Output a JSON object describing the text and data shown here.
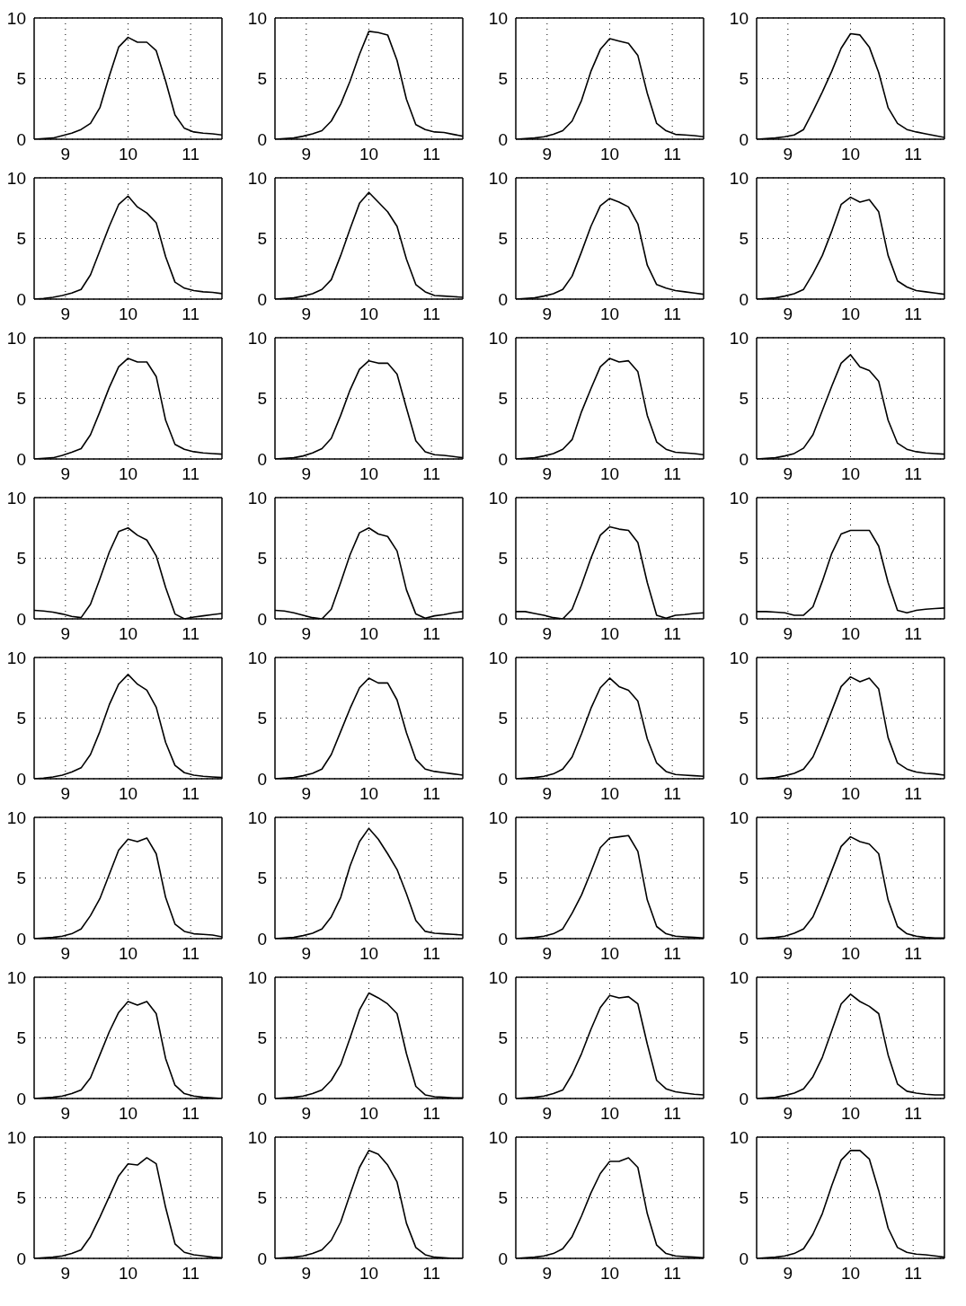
{
  "chart_data": [
    {
      "type": "line",
      "color": "#000000",
      "x": [
        8.5,
        8.65,
        8.8,
        8.95,
        9.1,
        9.25,
        9.4,
        9.55,
        9.7,
        9.85,
        10.0,
        10.15,
        10.3,
        10.45,
        10.6,
        10.75,
        10.9,
        11.05,
        11.2,
        11.35,
        11.5
      ],
      "values": [
        0,
        0.05,
        0.1,
        0.3,
        0.5,
        0.8,
        1.3,
        2.6,
        5.2,
        7.6,
        8.4,
        8.0,
        8.0,
        7.3,
        4.8,
        2.0,
        0.9,
        0.6,
        0.5,
        0.45,
        0.35
      ],
      "xlim": [
        8.5,
        11.5
      ],
      "xticks": [
        9,
        10,
        11
      ],
      "ylim": [
        0,
        10
      ],
      "yticks": [
        0,
        5,
        10
      ],
      "grid": true
    },
    {
      "type": "line",
      "color": "#000000",
      "x": [
        8.5,
        8.65,
        8.8,
        8.95,
        9.1,
        9.25,
        9.4,
        9.55,
        9.7,
        9.85,
        10.0,
        10.15,
        10.3,
        10.45,
        10.6,
        10.75,
        10.9,
        11.05,
        11.2,
        11.35,
        11.5
      ],
      "values": [
        0,
        0.05,
        0.1,
        0.25,
        0.45,
        0.7,
        1.5,
        2.9,
        4.8,
        7.0,
        8.9,
        8.8,
        8.6,
        6.5,
        3.3,
        1.2,
        0.8,
        0.6,
        0.55,
        0.4,
        0.25
      ],
      "xlim": [
        8.5,
        11.5
      ],
      "xticks": [
        9,
        10,
        11
      ],
      "ylim": [
        0,
        10
      ],
      "yticks": [
        0,
        5,
        10
      ],
      "grid": true
    },
    {
      "type": "line",
      "color": "#000000",
      "x": [
        8.5,
        8.65,
        8.8,
        8.95,
        9.1,
        9.25,
        9.4,
        9.55,
        9.7,
        9.85,
        10.0,
        10.15,
        10.3,
        10.45,
        10.6,
        10.75,
        10.9,
        11.05,
        11.2,
        11.35,
        11.5
      ],
      "values": [
        0,
        0.05,
        0.1,
        0.2,
        0.4,
        0.7,
        1.5,
        3.2,
        5.6,
        7.4,
        8.3,
        8.1,
        7.9,
        6.9,
        3.8,
        1.3,
        0.7,
        0.4,
        0.35,
        0.3,
        0.2
      ],
      "xlim": [
        8.5,
        11.5
      ],
      "xticks": [
        9,
        10,
        11
      ],
      "ylim": [
        0,
        10
      ],
      "yticks": [
        0,
        5,
        10
      ],
      "grid": true
    },
    {
      "type": "line",
      "color": "#000000",
      "x": [
        8.5,
        8.65,
        8.8,
        8.95,
        9.1,
        9.25,
        9.4,
        9.55,
        9.7,
        9.85,
        10.0,
        10.15,
        10.3,
        10.45,
        10.6,
        10.75,
        10.9,
        11.05,
        11.2,
        11.35,
        11.5
      ],
      "values": [
        0,
        0.05,
        0.1,
        0.2,
        0.35,
        0.8,
        2.3,
        3.9,
        5.6,
        7.5,
        8.7,
        8.6,
        7.6,
        5.5,
        2.6,
        1.3,
        0.8,
        0.6,
        0.45,
        0.3,
        0.15
      ],
      "xlim": [
        8.5,
        11.5
      ],
      "xticks": [
        9,
        10,
        11
      ],
      "ylim": [
        0,
        10
      ],
      "yticks": [
        0,
        5,
        10
      ],
      "grid": true
    },
    {
      "type": "line",
      "color": "#000000",
      "x": [
        8.5,
        8.65,
        8.8,
        8.95,
        9.1,
        9.25,
        9.4,
        9.55,
        9.7,
        9.85,
        10.0,
        10.15,
        10.3,
        10.45,
        10.6,
        10.75,
        10.9,
        11.05,
        11.2,
        11.35,
        11.5
      ],
      "values": [
        0,
        0.05,
        0.15,
        0.3,
        0.5,
        0.8,
        2.0,
        4.0,
        6.0,
        7.8,
        8.5,
        7.6,
        7.1,
        6.3,
        3.5,
        1.4,
        0.9,
        0.7,
        0.6,
        0.55,
        0.45
      ],
      "xlim": [
        8.5,
        11.5
      ],
      "xticks": [
        9,
        10,
        11
      ],
      "ylim": [
        0,
        10
      ],
      "yticks": [
        0,
        5,
        10
      ],
      "grid": true
    },
    {
      "type": "line",
      "color": "#000000",
      "x": [
        8.5,
        8.65,
        8.8,
        8.95,
        9.1,
        9.25,
        9.4,
        9.55,
        9.7,
        9.85,
        10.0,
        10.15,
        10.3,
        10.45,
        10.6,
        10.75,
        10.9,
        11.05,
        11.2,
        11.35,
        11.5
      ],
      "values": [
        0,
        0.05,
        0.1,
        0.25,
        0.45,
        0.8,
        1.6,
        3.6,
        5.8,
        7.9,
        8.8,
        8.0,
        7.2,
        6.0,
        3.3,
        1.2,
        0.6,
        0.3,
        0.25,
        0.2,
        0.15
      ],
      "xlim": [
        8.5,
        11.5
      ],
      "xticks": [
        9,
        10,
        11
      ],
      "ylim": [
        0,
        10
      ],
      "yticks": [
        0,
        5,
        10
      ],
      "grid": true
    },
    {
      "type": "line",
      "color": "#000000",
      "x": [
        8.5,
        8.65,
        8.8,
        8.95,
        9.1,
        9.25,
        9.4,
        9.55,
        9.7,
        9.85,
        10.0,
        10.15,
        10.3,
        10.45,
        10.6,
        10.75,
        10.9,
        11.05,
        11.2,
        11.35,
        11.5
      ],
      "values": [
        0,
        0.05,
        0.1,
        0.25,
        0.45,
        0.8,
        1.9,
        3.9,
        6.0,
        7.7,
        8.3,
        8.0,
        7.6,
        6.2,
        2.8,
        1.2,
        0.9,
        0.7,
        0.6,
        0.5,
        0.4
      ],
      "xlim": [
        8.5,
        11.5
      ],
      "xticks": [
        9,
        10,
        11
      ],
      "ylim": [
        0,
        10
      ],
      "yticks": [
        0,
        5,
        10
      ],
      "grid": true
    },
    {
      "type": "line",
      "color": "#000000",
      "x": [
        8.5,
        8.65,
        8.8,
        8.95,
        9.1,
        9.25,
        9.4,
        9.55,
        9.7,
        9.85,
        10.0,
        10.15,
        10.3,
        10.45,
        10.6,
        10.75,
        10.9,
        11.05,
        11.2,
        11.35,
        11.5
      ],
      "values": [
        0,
        0.05,
        0.1,
        0.25,
        0.45,
        0.8,
        2.1,
        3.6,
        5.6,
        7.8,
        8.4,
        8.0,
        8.2,
        7.2,
        3.6,
        1.5,
        1.0,
        0.7,
        0.6,
        0.5,
        0.4
      ],
      "xlim": [
        8.5,
        11.5
      ],
      "xticks": [
        9,
        10,
        11
      ],
      "ylim": [
        0,
        10
      ],
      "yticks": [
        0,
        5,
        10
      ],
      "grid": true
    },
    {
      "type": "line",
      "color": "#000000",
      "x": [
        8.5,
        8.65,
        8.8,
        8.95,
        9.1,
        9.25,
        9.4,
        9.55,
        9.7,
        9.85,
        10.0,
        10.15,
        10.3,
        10.45,
        10.6,
        10.75,
        10.9,
        11.05,
        11.2,
        11.35,
        11.5
      ],
      "values": [
        0,
        0.05,
        0.1,
        0.3,
        0.55,
        0.85,
        2.0,
        3.9,
        5.9,
        7.6,
        8.3,
        8.0,
        8.0,
        6.8,
        3.2,
        1.2,
        0.8,
        0.6,
        0.5,
        0.45,
        0.4
      ],
      "xlim": [
        8.5,
        11.5
      ],
      "xticks": [
        9,
        10,
        11
      ],
      "ylim": [
        0,
        10
      ],
      "yticks": [
        0,
        5,
        10
      ],
      "grid": true
    },
    {
      "type": "line",
      "color": "#000000",
      "x": [
        8.5,
        8.65,
        8.8,
        8.95,
        9.1,
        9.25,
        9.4,
        9.55,
        9.7,
        9.85,
        10.0,
        10.15,
        10.3,
        10.45,
        10.6,
        10.75,
        10.9,
        11.05,
        11.2,
        11.35,
        11.5
      ],
      "values": [
        0,
        0.05,
        0.1,
        0.25,
        0.5,
        0.85,
        1.7,
        3.6,
        5.7,
        7.4,
        8.1,
        7.9,
        7.9,
        7.0,
        4.2,
        1.5,
        0.6,
        0.35,
        0.3,
        0.2,
        0.1
      ],
      "xlim": [
        8.5,
        11.5
      ],
      "xticks": [
        9,
        10,
        11
      ],
      "ylim": [
        0,
        10
      ],
      "yticks": [
        0,
        5,
        10
      ],
      "grid": true
    },
    {
      "type": "line",
      "color": "#000000",
      "x": [
        8.5,
        8.65,
        8.8,
        8.95,
        9.1,
        9.25,
        9.4,
        9.55,
        9.7,
        9.85,
        10.0,
        10.15,
        10.3,
        10.45,
        10.6,
        10.75,
        10.9,
        11.05,
        11.2,
        11.35,
        11.5
      ],
      "values": [
        0,
        0.05,
        0.1,
        0.25,
        0.45,
        0.8,
        1.6,
        3.9,
        5.8,
        7.6,
        8.3,
        8.0,
        8.1,
        7.2,
        3.6,
        1.4,
        0.8,
        0.55,
        0.5,
        0.45,
        0.35
      ],
      "xlim": [
        8.5,
        11.5
      ],
      "xticks": [
        9,
        10,
        11
      ],
      "ylim": [
        0,
        10
      ],
      "yticks": [
        0,
        5,
        10
      ],
      "grid": true
    },
    {
      "type": "line",
      "color": "#000000",
      "x": [
        8.5,
        8.65,
        8.8,
        8.95,
        9.1,
        9.25,
        9.4,
        9.55,
        9.7,
        9.85,
        10.0,
        10.15,
        10.3,
        10.45,
        10.6,
        10.75,
        10.9,
        11.05,
        11.2,
        11.35,
        11.5
      ],
      "values": [
        0,
        0.05,
        0.1,
        0.25,
        0.45,
        0.9,
        2.0,
        4.0,
        6.0,
        7.9,
        8.6,
        7.6,
        7.3,
        6.4,
        3.2,
        1.3,
        0.8,
        0.6,
        0.5,
        0.45,
        0.4
      ],
      "xlim": [
        8.5,
        11.5
      ],
      "xticks": [
        9,
        10,
        11
      ],
      "ylim": [
        0,
        10
      ],
      "yticks": [
        0,
        5,
        10
      ],
      "grid": true
    },
    {
      "type": "line",
      "color": "#000000",
      "x": [
        8.5,
        8.65,
        8.8,
        8.95,
        9.1,
        9.25,
        9.4,
        9.55,
        9.7,
        9.85,
        10.0,
        10.15,
        10.3,
        10.45,
        10.6,
        10.75,
        10.9,
        11.05,
        11.2,
        11.35,
        11.5
      ],
      "values": [
        0.7,
        0.65,
        0.55,
        0.4,
        0.2,
        0.1,
        1.2,
        3.3,
        5.5,
        7.2,
        7.5,
        6.9,
        6.5,
        5.2,
        2.6,
        0.4,
        0.0,
        0.15,
        0.25,
        0.35,
        0.45
      ],
      "xlim": [
        8.5,
        11.5
      ],
      "xticks": [
        9,
        10,
        11
      ],
      "ylim": [
        0,
        10
      ],
      "yticks": [
        0,
        5,
        10
      ],
      "grid": true
    },
    {
      "type": "line",
      "color": "#000000",
      "x": [
        8.5,
        8.65,
        8.8,
        8.95,
        9.1,
        9.25,
        9.4,
        9.55,
        9.7,
        9.85,
        10.0,
        10.15,
        10.3,
        10.45,
        10.6,
        10.75,
        10.9,
        11.05,
        11.2,
        11.35,
        11.5
      ],
      "values": [
        0.7,
        0.65,
        0.5,
        0.3,
        0.1,
        0.0,
        0.8,
        3.0,
        5.3,
        7.1,
        7.5,
        7.0,
        6.8,
        5.6,
        2.4,
        0.4,
        0.05,
        0.25,
        0.35,
        0.5,
        0.6
      ],
      "xlim": [
        8.5,
        11.5
      ],
      "xticks": [
        9,
        10,
        11
      ],
      "ylim": [
        0,
        10
      ],
      "yticks": [
        0,
        5,
        10
      ],
      "grid": true
    },
    {
      "type": "line",
      "color": "#000000",
      "x": [
        8.5,
        8.65,
        8.8,
        8.95,
        9.1,
        9.25,
        9.4,
        9.55,
        9.7,
        9.85,
        10.0,
        10.15,
        10.3,
        10.45,
        10.6,
        10.75,
        10.9,
        11.05,
        11.2,
        11.35,
        11.5
      ],
      "values": [
        0.6,
        0.6,
        0.45,
        0.3,
        0.1,
        0.0,
        0.8,
        2.8,
        5.0,
        6.9,
        7.6,
        7.4,
        7.3,
        6.3,
        3.0,
        0.3,
        0.05,
        0.3,
        0.35,
        0.45,
        0.5
      ],
      "xlim": [
        8.5,
        11.5
      ],
      "xticks": [
        9,
        10,
        11
      ],
      "ylim": [
        0,
        10
      ],
      "yticks": [
        0,
        5,
        10
      ],
      "grid": true
    },
    {
      "type": "line",
      "color": "#000000",
      "x": [
        8.5,
        8.65,
        8.8,
        8.95,
        9.1,
        9.25,
        9.4,
        9.55,
        9.7,
        9.85,
        10.0,
        10.15,
        10.3,
        10.45,
        10.6,
        10.75,
        10.9,
        11.05,
        11.2,
        11.35,
        11.5
      ],
      "values": [
        0.6,
        0.6,
        0.55,
        0.5,
        0.3,
        0.3,
        1.0,
        3.1,
        5.4,
        7.0,
        7.3,
        7.3,
        7.3,
        6.0,
        3.0,
        0.7,
        0.5,
        0.7,
        0.8,
        0.85,
        0.9
      ],
      "xlim": [
        8.5,
        11.5
      ],
      "xticks": [
        9,
        10,
        11
      ],
      "ylim": [
        0,
        10
      ],
      "yticks": [
        0,
        5,
        10
      ],
      "grid": true
    },
    {
      "type": "line",
      "color": "#000000",
      "x": [
        8.5,
        8.65,
        8.8,
        8.95,
        9.1,
        9.25,
        9.4,
        9.55,
        9.7,
        9.85,
        10.0,
        10.15,
        10.3,
        10.45,
        10.6,
        10.75,
        10.9,
        11.05,
        11.2,
        11.35,
        11.5
      ],
      "values": [
        0,
        0.05,
        0.15,
        0.3,
        0.55,
        0.9,
        2.0,
        3.9,
        6.1,
        7.8,
        8.6,
        7.8,
        7.3,
        5.9,
        3.0,
        1.1,
        0.5,
        0.3,
        0.2,
        0.15,
        0.1
      ],
      "xlim": [
        8.5,
        11.5
      ],
      "xticks": [
        9,
        10,
        11
      ],
      "ylim": [
        0,
        10
      ],
      "yticks": [
        0,
        5,
        10
      ],
      "grid": true
    },
    {
      "type": "line",
      "color": "#000000",
      "x": [
        8.5,
        8.65,
        8.8,
        8.95,
        9.1,
        9.25,
        9.4,
        9.55,
        9.7,
        9.85,
        10.0,
        10.15,
        10.3,
        10.45,
        10.6,
        10.75,
        10.9,
        11.05,
        11.2,
        11.35,
        11.5
      ],
      "values": [
        0,
        0.05,
        0.1,
        0.25,
        0.45,
        0.8,
        2.0,
        3.9,
        5.8,
        7.5,
        8.3,
        7.9,
        7.9,
        6.5,
        3.8,
        1.6,
        0.8,
        0.6,
        0.5,
        0.4,
        0.3
      ],
      "xlim": [
        8.5,
        11.5
      ],
      "xticks": [
        9,
        10,
        11
      ],
      "ylim": [
        0,
        10
      ],
      "yticks": [
        0,
        5,
        10
      ],
      "grid": true
    },
    {
      "type": "line",
      "color": "#000000",
      "x": [
        8.5,
        8.65,
        8.8,
        8.95,
        9.1,
        9.25,
        9.4,
        9.55,
        9.7,
        9.85,
        10.0,
        10.15,
        10.3,
        10.45,
        10.6,
        10.75,
        10.9,
        11.05,
        11.2,
        11.35,
        11.5
      ],
      "values": [
        0,
        0.05,
        0.1,
        0.2,
        0.4,
        0.8,
        1.8,
        3.7,
        5.8,
        7.5,
        8.3,
        7.6,
        7.3,
        6.4,
        3.3,
        1.3,
        0.6,
        0.35,
        0.3,
        0.25,
        0.2
      ],
      "xlim": [
        8.5,
        11.5
      ],
      "xticks": [
        9,
        10,
        11
      ],
      "ylim": [
        0,
        10
      ],
      "yticks": [
        0,
        5,
        10
      ],
      "grid": true
    },
    {
      "type": "line",
      "color": "#000000",
      "x": [
        8.5,
        8.65,
        8.8,
        8.95,
        9.1,
        9.25,
        9.4,
        9.55,
        9.7,
        9.85,
        10.0,
        10.15,
        10.3,
        10.45,
        10.6,
        10.75,
        10.9,
        11.05,
        11.2,
        11.35,
        11.5
      ],
      "values": [
        0,
        0.05,
        0.1,
        0.25,
        0.45,
        0.8,
        1.8,
        3.6,
        5.6,
        7.6,
        8.4,
        8.0,
        8.3,
        7.4,
        3.4,
        1.3,
        0.8,
        0.55,
        0.45,
        0.4,
        0.3
      ],
      "xlim": [
        8.5,
        11.5
      ],
      "xticks": [
        9,
        10,
        11
      ],
      "ylim": [
        0,
        10
      ],
      "yticks": [
        0,
        5,
        10
      ],
      "grid": true
    },
    {
      "type": "line",
      "color": "#000000",
      "x": [
        8.5,
        8.65,
        8.8,
        8.95,
        9.1,
        9.25,
        9.4,
        9.55,
        9.7,
        9.85,
        10.0,
        10.15,
        10.3,
        10.45,
        10.6,
        10.75,
        10.9,
        11.05,
        11.2,
        11.35,
        11.5
      ],
      "values": [
        0,
        0.05,
        0.1,
        0.2,
        0.4,
        0.8,
        1.9,
        3.3,
        5.3,
        7.3,
        8.2,
        8.0,
        8.3,
        7.0,
        3.4,
        1.2,
        0.6,
        0.4,
        0.35,
        0.3,
        0.15
      ],
      "xlim": [
        8.5,
        11.5
      ],
      "xticks": [
        9,
        10,
        11
      ],
      "ylim": [
        0,
        10
      ],
      "yticks": [
        0,
        5,
        10
      ],
      "grid": true
    },
    {
      "type": "line",
      "color": "#000000",
      "x": [
        8.5,
        8.65,
        8.8,
        8.95,
        9.1,
        9.25,
        9.4,
        9.55,
        9.7,
        9.85,
        10.0,
        10.15,
        10.3,
        10.45,
        10.6,
        10.75,
        10.9,
        11.05,
        11.2,
        11.35,
        11.5
      ],
      "values": [
        0,
        0.05,
        0.1,
        0.25,
        0.45,
        0.8,
        1.8,
        3.4,
        6.0,
        8.0,
        9.1,
        8.2,
        7.0,
        5.7,
        3.7,
        1.5,
        0.6,
        0.45,
        0.4,
        0.35,
        0.3
      ],
      "xlim": [
        8.5,
        11.5
      ],
      "xticks": [
        9,
        10,
        11
      ],
      "ylim": [
        0,
        10
      ],
      "yticks": [
        0,
        5,
        10
      ],
      "grid": true
    },
    {
      "type": "line",
      "color": "#000000",
      "x": [
        8.5,
        8.65,
        8.8,
        8.95,
        9.1,
        9.25,
        9.4,
        9.55,
        9.7,
        9.85,
        10.0,
        10.15,
        10.3,
        10.45,
        10.6,
        10.75,
        10.9,
        11.05,
        11.2,
        11.35,
        11.5
      ],
      "values": [
        0,
        0.05,
        0.1,
        0.2,
        0.4,
        0.8,
        2.1,
        3.6,
        5.5,
        7.5,
        8.3,
        8.4,
        8.5,
        7.2,
        3.2,
        1.0,
        0.4,
        0.2,
        0.15,
        0.1,
        0.05
      ],
      "xlim": [
        8.5,
        11.5
      ],
      "xticks": [
        9,
        10,
        11
      ],
      "ylim": [
        0,
        10
      ],
      "yticks": [
        0,
        5,
        10
      ],
      "grid": true
    },
    {
      "type": "line",
      "color": "#000000",
      "x": [
        8.5,
        8.65,
        8.8,
        8.95,
        9.1,
        9.25,
        9.4,
        9.55,
        9.7,
        9.85,
        10.0,
        10.15,
        10.3,
        10.45,
        10.6,
        10.75,
        10.9,
        11.05,
        11.2,
        11.35,
        11.5
      ],
      "values": [
        0,
        0.05,
        0.1,
        0.2,
        0.45,
        0.8,
        1.8,
        3.6,
        5.6,
        7.6,
        8.4,
        8.0,
        7.8,
        7.0,
        3.2,
        1.0,
        0.4,
        0.2,
        0.1,
        0.05,
        0.05
      ],
      "xlim": [
        8.5,
        11.5
      ],
      "xticks": [
        9,
        10,
        11
      ],
      "ylim": [
        0,
        10
      ],
      "yticks": [
        0,
        5,
        10
      ],
      "grid": true
    },
    {
      "type": "line",
      "color": "#000000",
      "x": [
        8.5,
        8.65,
        8.8,
        8.95,
        9.1,
        9.25,
        9.4,
        9.55,
        9.7,
        9.85,
        10.0,
        10.15,
        10.3,
        10.45,
        10.6,
        10.75,
        10.9,
        11.05,
        11.2,
        11.35,
        11.5
      ],
      "values": [
        0,
        0.05,
        0.1,
        0.2,
        0.4,
        0.7,
        1.7,
        3.6,
        5.5,
        7.1,
        8.0,
        7.7,
        8.0,
        7.0,
        3.3,
        1.1,
        0.4,
        0.2,
        0.1,
        0.05,
        0.0
      ],
      "xlim": [
        8.5,
        11.5
      ],
      "xticks": [
        9,
        10,
        11
      ],
      "ylim": [
        0,
        10
      ],
      "yticks": [
        0,
        5,
        10
      ],
      "grid": true
    },
    {
      "type": "line",
      "color": "#000000",
      "x": [
        8.5,
        8.65,
        8.8,
        8.95,
        9.1,
        9.25,
        9.4,
        9.55,
        9.7,
        9.85,
        10.0,
        10.15,
        10.3,
        10.45,
        10.6,
        10.75,
        10.9,
        11.05,
        11.2,
        11.35,
        11.5
      ],
      "values": [
        0,
        0.05,
        0.1,
        0.2,
        0.4,
        0.7,
        1.5,
        2.8,
        5.0,
        7.3,
        8.7,
        8.3,
        7.8,
        7.0,
        3.7,
        1.0,
        0.3,
        0.15,
        0.1,
        0.05,
        0.05
      ],
      "xlim": [
        8.5,
        11.5
      ],
      "xticks": [
        9,
        10,
        11
      ],
      "ylim": [
        0,
        10
      ],
      "yticks": [
        0,
        5,
        10
      ],
      "grid": true
    },
    {
      "type": "line",
      "color": "#000000",
      "x": [
        8.5,
        8.65,
        8.8,
        8.95,
        9.1,
        9.25,
        9.4,
        9.55,
        9.7,
        9.85,
        10.0,
        10.15,
        10.3,
        10.45,
        10.6,
        10.75,
        10.9,
        11.05,
        11.2,
        11.35,
        11.5
      ],
      "values": [
        0,
        0.05,
        0.1,
        0.2,
        0.4,
        0.7,
        2.0,
        3.7,
        5.7,
        7.5,
        8.5,
        8.3,
        8.4,
        7.8,
        4.5,
        1.5,
        0.8,
        0.55,
        0.45,
        0.35,
        0.3
      ],
      "xlim": [
        8.5,
        11.5
      ],
      "xticks": [
        9,
        10,
        11
      ],
      "ylim": [
        0,
        10
      ],
      "yticks": [
        0,
        5,
        10
      ],
      "grid": true
    },
    {
      "type": "line",
      "color": "#000000",
      "x": [
        8.5,
        8.65,
        8.8,
        8.95,
        9.1,
        9.25,
        9.4,
        9.55,
        9.7,
        9.85,
        10.0,
        10.15,
        10.3,
        10.45,
        10.6,
        10.75,
        10.9,
        11.05,
        11.2,
        11.35,
        11.5
      ],
      "values": [
        0,
        0.05,
        0.1,
        0.25,
        0.45,
        0.8,
        1.8,
        3.4,
        5.6,
        7.8,
        8.6,
        8.0,
        7.6,
        7.0,
        3.6,
        1.2,
        0.6,
        0.45,
        0.35,
        0.3,
        0.3
      ],
      "xlim": [
        8.5,
        11.5
      ],
      "xticks": [
        9,
        10,
        11
      ],
      "ylim": [
        0,
        10
      ],
      "yticks": [
        0,
        5,
        10
      ],
      "grid": true
    },
    {
      "type": "line",
      "color": "#000000",
      "x": [
        8.5,
        8.65,
        8.8,
        8.95,
        9.1,
        9.25,
        9.4,
        9.55,
        9.7,
        9.85,
        10.0,
        10.15,
        10.3,
        10.45,
        10.6,
        10.75,
        10.9,
        11.05,
        11.2,
        11.35,
        11.5
      ],
      "values": [
        0,
        0.05,
        0.1,
        0.2,
        0.4,
        0.7,
        1.8,
        3.4,
        5.1,
        6.8,
        7.8,
        7.7,
        8.3,
        7.8,
        4.2,
        1.2,
        0.5,
        0.3,
        0.2,
        0.1,
        0.05
      ],
      "xlim": [
        8.5,
        11.5
      ],
      "xticks": [
        9,
        10,
        11
      ],
      "ylim": [
        0,
        10
      ],
      "yticks": [
        0,
        5,
        10
      ],
      "grid": true
    },
    {
      "type": "line",
      "color": "#000000",
      "x": [
        8.5,
        8.65,
        8.8,
        8.95,
        9.1,
        9.25,
        9.4,
        9.55,
        9.7,
        9.85,
        10.0,
        10.15,
        10.3,
        10.45,
        10.6,
        10.75,
        10.9,
        11.05,
        11.2,
        11.35,
        11.5
      ],
      "values": [
        0,
        0.05,
        0.1,
        0.2,
        0.4,
        0.7,
        1.5,
        3.0,
        5.3,
        7.5,
        8.9,
        8.6,
        7.7,
        6.3,
        2.9,
        0.9,
        0.3,
        0.1,
        0.05,
        0.0,
        0.0
      ],
      "xlim": [
        8.5,
        11.5
      ],
      "xticks": [
        9,
        10,
        11
      ],
      "ylim": [
        0,
        10
      ],
      "yticks": [
        0,
        5,
        10
      ],
      "grid": true
    },
    {
      "type": "line",
      "color": "#000000",
      "x": [
        8.5,
        8.65,
        8.8,
        8.95,
        9.1,
        9.25,
        9.4,
        9.55,
        9.7,
        9.85,
        10.0,
        10.15,
        10.3,
        10.45,
        10.6,
        10.75,
        10.9,
        11.05,
        11.2,
        11.35,
        11.5
      ],
      "values": [
        0,
        0.05,
        0.1,
        0.2,
        0.4,
        0.8,
        1.8,
        3.5,
        5.4,
        7.0,
        8.0,
        8.0,
        8.3,
        7.5,
        3.7,
        1.1,
        0.4,
        0.2,
        0.15,
        0.1,
        0.05
      ],
      "xlim": [
        8.5,
        11.5
      ],
      "xticks": [
        9,
        10,
        11
      ],
      "ylim": [
        0,
        10
      ],
      "yticks": [
        0,
        5,
        10
      ],
      "grid": true
    },
    {
      "type": "line",
      "color": "#000000",
      "x": [
        8.5,
        8.65,
        8.8,
        8.95,
        9.1,
        9.25,
        9.4,
        9.55,
        9.7,
        9.85,
        10.0,
        10.15,
        10.3,
        10.45,
        10.6,
        10.75,
        10.9,
        11.05,
        11.2,
        11.35,
        11.5
      ],
      "values": [
        0,
        0.05,
        0.1,
        0.2,
        0.4,
        0.8,
        2.0,
        3.7,
        6.0,
        8.1,
        8.9,
        8.9,
        8.2,
        5.6,
        2.5,
        0.9,
        0.5,
        0.35,
        0.3,
        0.2,
        0.1
      ],
      "xlim": [
        8.5,
        11.5
      ],
      "xticks": [
        9,
        10,
        11
      ],
      "ylim": [
        0,
        10
      ],
      "yticks": [
        0,
        5,
        10
      ],
      "grid": true
    }
  ]
}
